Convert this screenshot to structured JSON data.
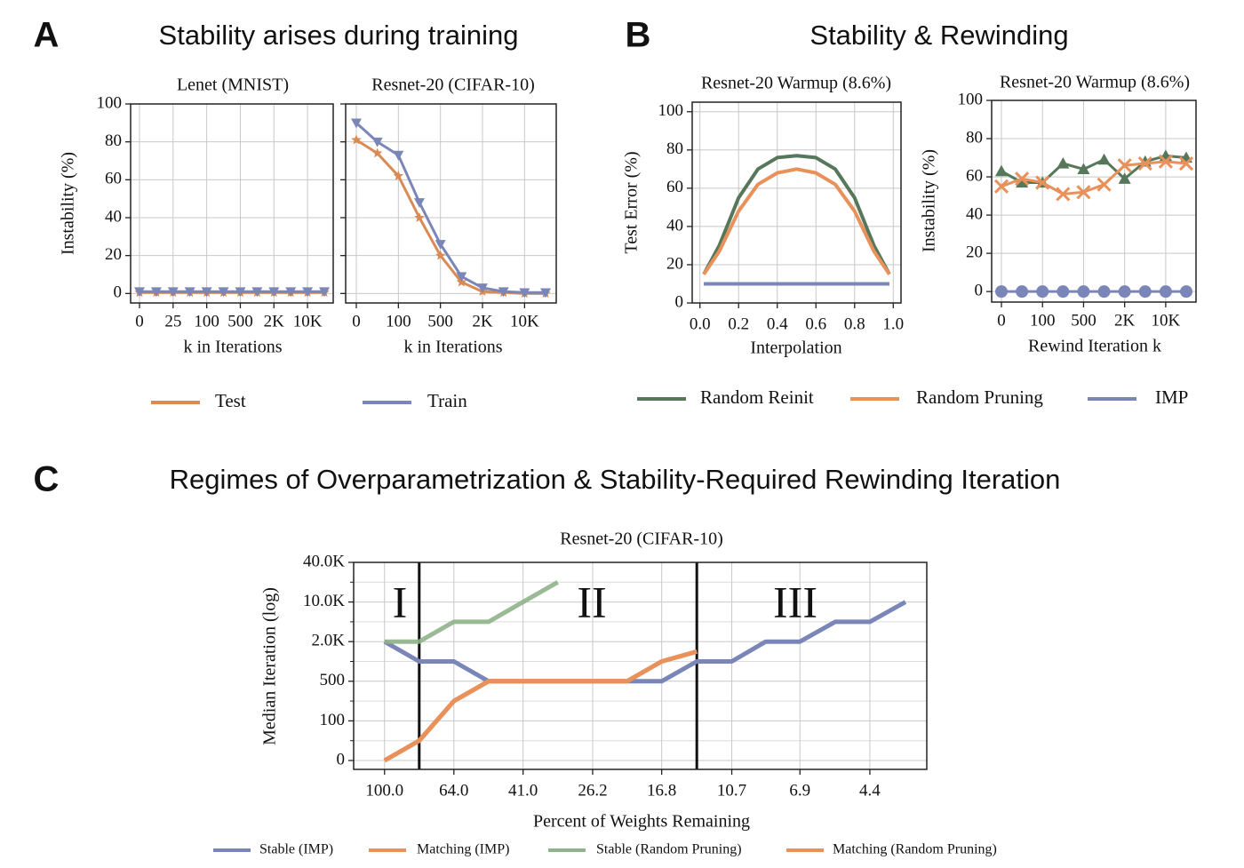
{
  "panels": [
    {
      "letter": "A",
      "title": "Stability arises during training"
    },
    {
      "letter": "B",
      "title": "Stability & Rewinding"
    },
    {
      "letter": "C",
      "title": "Regimes of Overparametrization & Stability-Required Rewinding Iteration"
    }
  ],
  "chart_data": [
    {
      "type": "line",
      "title": "Lenet (MNIST)",
      "xlabel": "k in Iterations",
      "ylabel": "Instability (%)",
      "categories": [
        "0",
        null,
        "25",
        null,
        "100",
        null,
        "500",
        null,
        "2K",
        null,
        "10K",
        null
      ],
      "ylim": [
        -5,
        100
      ],
      "yticks": [
        0,
        20,
        40,
        60,
        80,
        100
      ],
      "grid": true,
      "series": [
        {
          "name": "Test",
          "color": "#d98a55",
          "marker": "*",
          "values": [
            0.5,
            0.5,
            0.5,
            0.5,
            0.5,
            0.5,
            0.5,
            0.5,
            0.5,
            0.5,
            0.5,
            0.5
          ]
        },
        {
          "name": "Train",
          "color": "#7b86b8",
          "marker": "v",
          "values": [
            1,
            1,
            1,
            1,
            1,
            1,
            1,
            1,
            1,
            1,
            1,
            1
          ]
        }
      ]
    },
    {
      "type": "line",
      "title": "Resnet-20 (CIFAR-10)",
      "xlabel": "k in Iterations",
      "categories": [
        "0",
        null,
        "100",
        null,
        "500",
        null,
        "2K",
        null,
        "10K",
        null
      ],
      "ylim": [
        -5,
        100
      ],
      "yticks": [
        0,
        20,
        40,
        60,
        80,
        100
      ],
      "ytick_labels": false,
      "grid": true,
      "series": [
        {
          "name": "Test",
          "color": "#d98a55",
          "marker": "*",
          "values": [
            81,
            74,
            62,
            40,
            20,
            6,
            1,
            0.5,
            0,
            0
          ]
        },
        {
          "name": "Train",
          "color": "#7b86b8",
          "marker": "v",
          "values": [
            90,
            80,
            73,
            48,
            26,
            9,
            3,
            1,
            0.5,
            0.5
          ]
        }
      ]
    },
    {
      "type": "line",
      "title": "Resnet-20 Warmup (8.6%)",
      "xlabel": "Interpolation",
      "ylabel": "Test Error (%)",
      "x": [
        0.02,
        0.1,
        0.2,
        0.3,
        0.4,
        0.5,
        0.6,
        0.7,
        0.8,
        0.9,
        0.98
      ],
      "xlim": [
        -0.04,
        1.04
      ],
      "xticks": [
        {
          "value": 0,
          "label": "0.0"
        },
        0.2,
        0.4,
        0.6,
        0.8,
        {
          "value": 1,
          "label": "1.0"
        }
      ],
      "ylim": [
        0,
        105
      ],
      "yticks": [
        0,
        20,
        40,
        60,
        80,
        100
      ],
      "grid": true,
      "series": [
        {
          "name": "Random Reinit",
          "color": "#56775a",
          "values": [
            15,
            30,
            55,
            70,
            76,
            77,
            76,
            70,
            55,
            30,
            15
          ]
        },
        {
          "name": "Random Pruning",
          "color": "#e8915a",
          "values": [
            15,
            27,
            48,
            62,
            68,
            70,
            68,
            62,
            48,
            27,
            15
          ]
        },
        {
          "name": "IMP",
          "color": "#7b86b8",
          "values": [
            10,
            10,
            10,
            10,
            10,
            10,
            10,
            10,
            10,
            10,
            10
          ]
        }
      ]
    },
    {
      "type": "line",
      "title": "Resnet-20 Warmup (8.6%)",
      "xlabel": "Rewind Iteration k",
      "ylabel": "Instability (%)",
      "categories": [
        "0",
        null,
        "100",
        null,
        "500",
        null,
        "2K",
        null,
        "10K",
        null
      ],
      "ylim": [
        -5.5,
        100
      ],
      "yticks": [
        0,
        20,
        40,
        60,
        80,
        100
      ],
      "grid": true,
      "series": [
        {
          "name": "Random Reinit",
          "color": "#56775a",
          "marker": "^",
          "values": [
            63,
            57,
            57,
            67,
            64,
            69,
            59,
            68,
            71,
            70
          ]
        },
        {
          "name": "Random Pruning",
          "color": "#e8915a",
          "marker": "x",
          "values": [
            55,
            59,
            57,
            51,
            52,
            56,
            66,
            67,
            68,
            67
          ]
        },
        {
          "name": "IMP",
          "color": "#7b86b8",
          "marker": "o",
          "values": [
            0,
            0,
            0,
            0,
            0,
            0,
            0,
            0,
            0,
            0
          ]
        }
      ]
    },
    {
      "type": "line",
      "title": "Resnet-20 (CIFAR-10)",
      "xlabel": "Percent of Weights Remaining",
      "ylabel": "Median Iteration (log)",
      "x": [
        100,
        80,
        64,
        51.2,
        41,
        32.8,
        26.2,
        21,
        16.8,
        13.4,
        10.7,
        8.6,
        6.9,
        5.5,
        4.4,
        3.5
      ],
      "xscale": "log",
      "xlim": [
        122,
        3.05
      ],
      "xticks": [
        {
          "value": 100,
          "label": "100.0"
        },
        {
          "value": 64,
          "label": "64.0"
        },
        {
          "value": 41,
          "label": "41.0"
        },
        26.2,
        16.8,
        10.7,
        6.9,
        4.4
      ],
      "yscale": "log",
      "ylim": [
        0,
        40000
      ],
      "yticks": [
        0,
        100,
        500,
        {
          "value": 2000,
          "label": "2.0K"
        },
        {
          "value": 10000,
          "label": "10.0K"
        },
        {
          "value": 40000,
          "label": "40.0K"
        }
      ],
      "yminorticks": [
        50,
        250,
        1000,
        5000,
        20000
      ],
      "grid": true,
      "vlines": [
        80,
        13.4
      ],
      "annotations": [
        "I",
        "II",
        "III"
      ],
      "legend": "lower center",
      "series": [
        {
          "name": "Stable (IMP)",
          "color": "#7b86b8",
          "values": [
            2000,
            1000,
            1000,
            500,
            500,
            500,
            500,
            500,
            500,
            1000,
            1000,
            2000,
            2000,
            5000,
            5000,
            10000
          ]
        },
        {
          "name": "Matching (IMP)",
          "color": "#e8915a",
          "values": [
            0,
            50,
            250,
            500,
            500,
            500,
            500,
            500,
            1000,
            1500,
            null,
            null,
            null,
            null,
            null,
            null
          ]
        },
        {
          "name": "Stable (Random Pruning)",
          "color": "#8fb38a",
          "values": [
            2000,
            2000,
            5000,
            5000,
            10000,
            20000,
            null,
            null,
            null,
            null,
            null,
            null,
            null,
            null,
            null,
            null
          ]
        },
        {
          "name": "Matching (Random Pruning)",
          "color": "#e8915a",
          "values": [
            0,
            50,
            250,
            500,
            500,
            500,
            500,
            500,
            1000,
            1500,
            null,
            null,
            null,
            null,
            null,
            null
          ]
        }
      ]
    }
  ]
}
